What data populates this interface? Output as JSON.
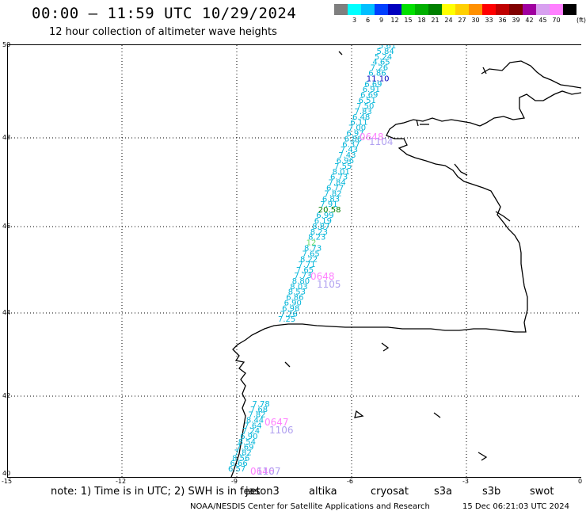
{
  "header": {
    "title": "00:00 – 11:59 UTC 10/29/2024",
    "subtitle": "12 hour collection of altimeter wave heights"
  },
  "legend": {
    "unit": "(ft)",
    "levels": [
      {
        "label": "",
        "color": "#7f7f7f"
      },
      {
        "label": "3",
        "color": "#00ffff"
      },
      {
        "label": "6",
        "color": "#00bfff"
      },
      {
        "label": "9",
        "color": "#0040ff"
      },
      {
        "label": "12",
        "color": "#0000bf"
      },
      {
        "label": "15",
        "color": "#00e000"
      },
      {
        "label": "18",
        "color": "#00b000"
      },
      {
        "label": "21",
        "color": "#008000"
      },
      {
        "label": "24",
        "color": "#ffff00"
      },
      {
        "label": "27",
        "color": "#ffd000"
      },
      {
        "label": "30",
        "color": "#ff9000"
      },
      {
        "label": "33",
        "color": "#ff0000"
      },
      {
        "label": "36",
        "color": "#c00000"
      },
      {
        "label": "39",
        "color": "#800000"
      },
      {
        "label": "42",
        "color": "#a000a0"
      },
      {
        "label": "45",
        "color": "#d8a0f0"
      },
      {
        "label": "70",
        "color": "#ff80ff"
      },
      {
        "label": "",
        "color": "#000000"
      }
    ]
  },
  "axes": {
    "y_labels": [
      "50",
      "48",
      "46",
      "44",
      "42",
      "40"
    ],
    "x_labels": [
      "-15",
      "-12",
      "-9",
      "-6",
      "-3",
      "0"
    ]
  },
  "map_labels": {
    "swh_values": [
      "5.61",
      "5.84",
      "5.24",
      "4.65",
      "7.26",
      "6.86",
      "11.10",
      "6.69",
      "6.91",
      "6.69",
      "6.51",
      "7.50",
      "7.83",
      "6.48",
      "6.11",
      "7.00",
      "6.97",
      "6.86",
      "6.37",
      "7.43",
      "7.43",
      "6.96",
      "7.55",
      "8.01",
      "6.73",
      "7.84",
      "6.77",
      "7.82",
      "6.83",
      "7.91",
      "20.58",
      "6.99",
      "6.19",
      "8.87",
      "8.23",
      "8.23",
      "12",
      "8.73",
      "7.65",
      "8.22",
      "7.71",
      "7.65",
      "7.73",
      "8.80",
      "8.03",
      "8.53",
      "6.86",
      "6.90",
      "6.98",
      "7.26",
      "7.25",
      "7.78",
      "7.68",
      "7.82",
      "8.44",
      "7.64",
      "7.24",
      "6.90",
      "8.54",
      "7.69",
      "7.82",
      "8.56",
      "6.66",
      "6.57"
    ],
    "time_tags": [
      "0648",
      "1104",
      "0648",
      "1105",
      "0647",
      "1106",
      "0646",
      "1107"
    ]
  },
  "note": {
    "text": "note: 1) Time is in UTC; 2) SWH is in feet",
    "satellites": [
      {
        "name": "jason3",
        "color": "#008000"
      },
      {
        "name": "altika",
        "color": "#ff9000"
      },
      {
        "name": "cryosat",
        "color": "#ff0000"
      },
      {
        "name": "s3a",
        "color": "#800000"
      },
      {
        "name": "s3b",
        "color": "#b0a0f0"
      },
      {
        "name": "swot",
        "color": "#ff80ff"
      }
    ]
  },
  "footer": {
    "credit": "NOAA/NESDIS Center for Satellite Applications and Research",
    "timestamp": "15 Dec 06:21:03 UTC 2024"
  }
}
